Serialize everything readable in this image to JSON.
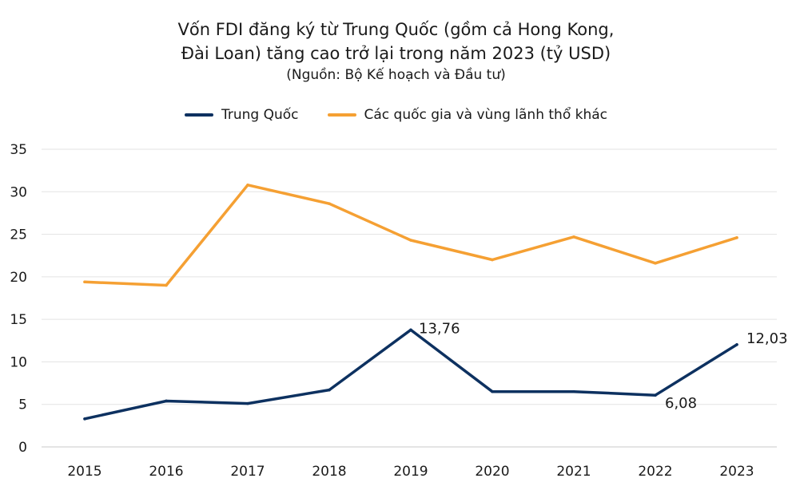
{
  "chart_data": {
    "type": "line",
    "title_lines": [
      "Vốn FDI đăng ký từ Trung Quốc (gồm cả Hong Kong,",
      "Đài Loan) tăng cao trở lại trong năm 2023 (tỷ USD)"
    ],
    "subtitle": "(Nguồn: Bộ Kế hoạch và Đầu tư)",
    "x": [
      "2015",
      "2016",
      "2017",
      "2018",
      "2019",
      "2020",
      "2021",
      "2022",
      "2023"
    ],
    "series": [
      {
        "name": "Trung Quốc",
        "color": "#0d3160",
        "values": [
          3.3,
          5.4,
          5.1,
          6.7,
          13.76,
          6.5,
          6.5,
          6.08,
          12.03
        ],
        "labels": [
          "",
          "",
          "",
          "",
          "13,76",
          "",
          "",
          "6,08",
          "12,03"
        ]
      },
      {
        "name": "Các quốc gia và vùng lãnh thổ khác",
        "color": "#f5a033",
        "values": [
          19.4,
          19.0,
          30.8,
          28.6,
          24.3,
          22.0,
          24.7,
          21.6,
          24.6
        ],
        "labels": [
          "",
          "",
          "",
          "",
          "",
          "",
          "",
          "",
          ""
        ]
      }
    ],
    "yticks": [
      "0",
      "5",
      "10",
      "15",
      "20",
      "25",
      "30",
      "35"
    ],
    "ylim": [
      0,
      35
    ],
    "grid": true,
    "legend_position": "top-center"
  }
}
